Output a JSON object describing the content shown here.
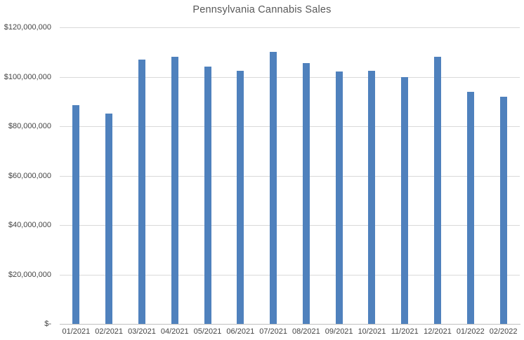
{
  "title": "Pennsylvania Cannabis Sales",
  "colors": {
    "bar": "#4F81BD",
    "gridline": "#D9D9D9",
    "axis_line": "#BFBFBF",
    "title_text": "#595959",
    "tick_text": "#444444",
    "background": "#FFFFFF"
  },
  "chart_data": {
    "type": "bar",
    "title": "Pennsylvania Cannabis Sales",
    "categories": [
      "01/2021",
      "02/2021",
      "03/2021",
      "04/2021",
      "05/2021",
      "06/2021",
      "07/2021",
      "08/2021",
      "09/2021",
      "10/2021",
      "11/2021",
      "12/2021",
      "01/2022",
      "02/2022"
    ],
    "values": [
      88500000,
      85000000,
      107000000,
      108000000,
      104000000,
      102500000,
      110000000,
      105500000,
      102000000,
      102500000,
      100000000,
      108000000,
      94000000,
      92000000
    ],
    "xlabel": "",
    "ylabel": "",
    "ylim": [
      0,
      120000000
    ],
    "ytick_step": 20000000,
    "ytick_labels": [
      "$-",
      "$20,000,000",
      "$40,000,000",
      "$60,000,000",
      "$80,000,000",
      "$100,000,000",
      "$120,000,000"
    ],
    "grid": true,
    "legend": false
  }
}
